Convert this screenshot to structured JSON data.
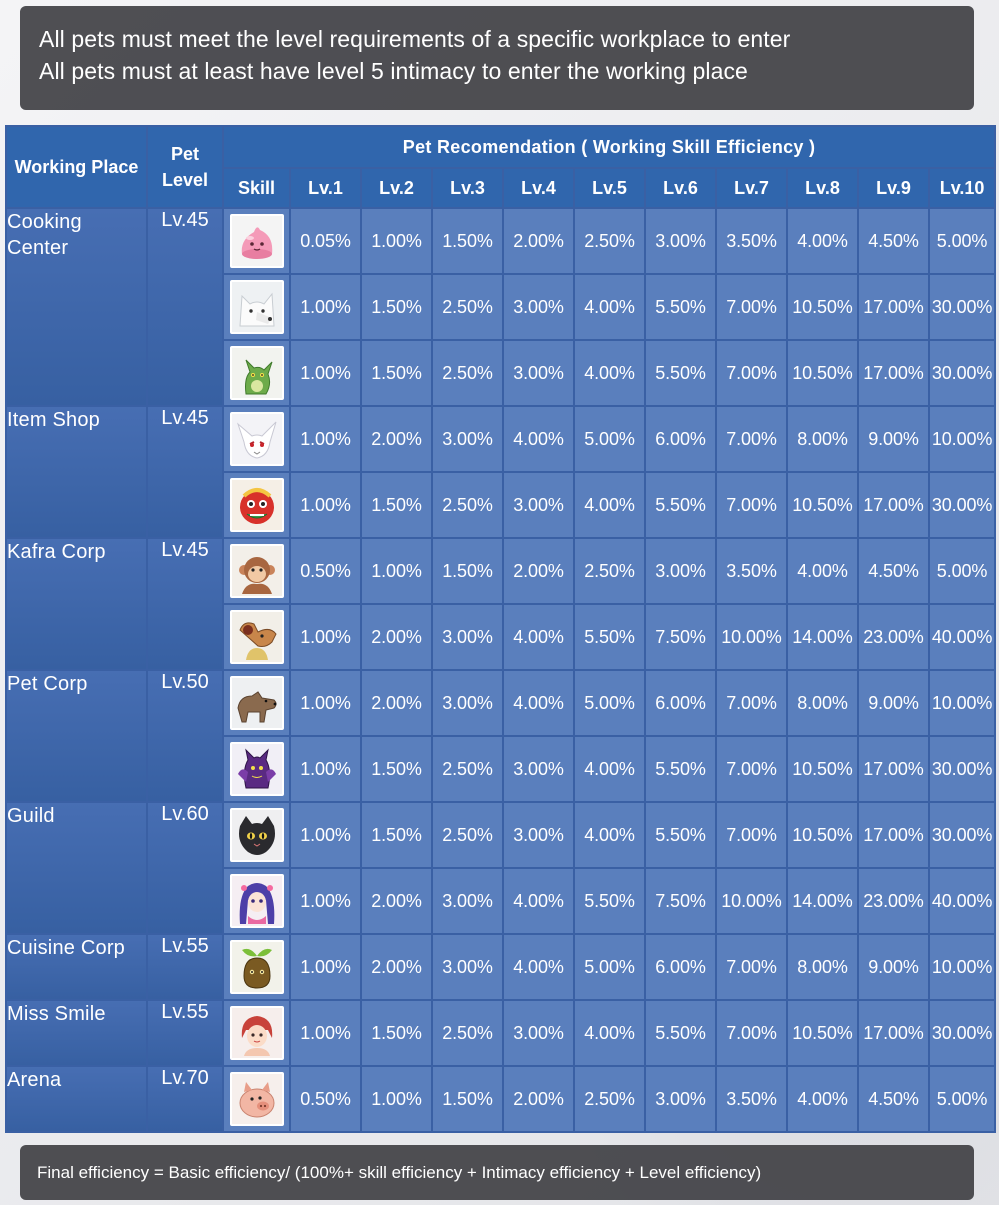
{
  "notes": {
    "top_line1": "All pets must meet the level requirements of a specific workplace to enter",
    "top_line2": "All pets must at least have level 5 intimacy to enter the working place",
    "bottom": "Final efficiency = Basic efficiency/ (100%+ skill efficiency + Intimacy efficiency + Level efficiency)"
  },
  "table": {
    "header": {
      "working_place": "Working Place",
      "pet_level": "Pet Level",
      "recommendation": "Pet Recomendation ( Working Skill Efficiency )",
      "skill": "Skill",
      "levels": [
        "Lv.1",
        "Lv.2",
        "Lv.3",
        "Lv.4",
        "Lv.5",
        "Lv.6",
        "Lv.7",
        "Lv.8",
        "Lv.9",
        "Lv.10"
      ]
    },
    "places": [
      {
        "name": "Cooking Center",
        "level": "Lv.45",
        "pets": [
          {
            "icon": "poring-pet-icon",
            "values": [
              "0.05%",
              "1.00%",
              "1.50%",
              "2.00%",
              "2.50%",
              "3.00%",
              "3.50%",
              "4.00%",
              "4.50%",
              "5.00%"
            ]
          },
          {
            "icon": "white-wolf-pet-icon",
            "values": [
              "1.00%",
              "1.50%",
              "2.50%",
              "3.00%",
              "4.00%",
              "5.50%",
              "7.00%",
              "10.50%",
              "17.00%",
              "30.00%"
            ]
          },
          {
            "icon": "green-dragon-pet-icon",
            "values": [
              "1.00%",
              "1.50%",
              "2.50%",
              "3.00%",
              "4.00%",
              "5.50%",
              "7.00%",
              "10.50%",
              "17.00%",
              "30.00%"
            ]
          }
        ]
      },
      {
        "name": "Item Shop",
        "level": "Lv.45",
        "pets": [
          {
            "icon": "white-rabbit-pet-icon",
            "values": [
              "1.00%",
              "2.00%",
              "3.00%",
              "4.00%",
              "5.00%",
              "6.00%",
              "7.00%",
              "8.00%",
              "9.00%",
              "10.00%"
            ]
          },
          {
            "icon": "lion-dance-pet-icon",
            "values": [
              "1.00%",
              "1.50%",
              "2.50%",
              "3.00%",
              "4.00%",
              "5.50%",
              "7.00%",
              "10.50%",
              "17.00%",
              "30.00%"
            ]
          }
        ]
      },
      {
        "name": "Kafra Corp",
        "level": "Lv.45",
        "pets": [
          {
            "icon": "monkey-pet-icon",
            "values": [
              "0.50%",
              "1.00%",
              "1.50%",
              "2.00%",
              "2.50%",
              "3.00%",
              "3.50%",
              "4.00%",
              "4.50%",
              "5.00%"
            ]
          },
          {
            "icon": "goblin-pet-icon",
            "values": [
              "1.00%",
              "2.00%",
              "3.00%",
              "4.00%",
              "5.50%",
              "7.50%",
              "10.00%",
              "14.00%",
              "23.00%",
              "40.00%"
            ]
          }
        ]
      },
      {
        "name": "Pet Corp",
        "level": "Lv.50",
        "pets": [
          {
            "icon": "wolf-pet-icon",
            "values": [
              "1.00%",
              "2.00%",
              "3.00%",
              "4.00%",
              "5.00%",
              "6.00%",
              "7.00%",
              "8.00%",
              "9.00%",
              "10.00%"
            ]
          },
          {
            "icon": "purple-devil-pet-icon",
            "values": [
              "1.00%",
              "1.50%",
              "2.50%",
              "3.00%",
              "4.00%",
              "5.50%",
              "7.00%",
              "10.50%",
              "17.00%",
              "30.00%"
            ]
          }
        ]
      },
      {
        "name": "Guild",
        "level": "Lv.60",
        "pets": [
          {
            "icon": "black-cat-pet-icon",
            "values": [
              "1.00%",
              "1.50%",
              "2.50%",
              "3.00%",
              "4.00%",
              "5.50%",
              "7.00%",
              "10.50%",
              "17.00%",
              "30.00%"
            ]
          },
          {
            "icon": "girl-doll-pet-icon",
            "values": [
              "1.00%",
              "2.00%",
              "3.00%",
              "4.00%",
              "5.50%",
              "7.50%",
              "10.00%",
              "14.00%",
              "23.00%",
              "40.00%"
            ]
          }
        ]
      },
      {
        "name": "Cuisine Corp",
        "level": "Lv.55",
        "pets": [
          {
            "icon": "sprout-pet-icon",
            "values": [
              "1.00%",
              "2.00%",
              "3.00%",
              "4.00%",
              "5.00%",
              "6.00%",
              "7.00%",
              "8.00%",
              "9.00%",
              "10.00%"
            ]
          }
        ]
      },
      {
        "name": "Miss Smile",
        "level": "Lv.55",
        "pets": [
          {
            "icon": "red-hair-doll-pet-icon",
            "values": [
              "1.00%",
              "1.50%",
              "2.50%",
              "3.00%",
              "4.00%",
              "5.50%",
              "7.00%",
              "10.50%",
              "17.00%",
              "30.00%"
            ]
          }
        ]
      },
      {
        "name": "Arena",
        "level": "Lv.70",
        "pets": [
          {
            "icon": "pig-pet-icon",
            "values": [
              "0.50%",
              "1.00%",
              "1.50%",
              "2.00%",
              "2.50%",
              "3.00%",
              "3.50%",
              "4.00%",
              "4.50%",
              "5.00%"
            ]
          }
        ]
      }
    ]
  }
}
